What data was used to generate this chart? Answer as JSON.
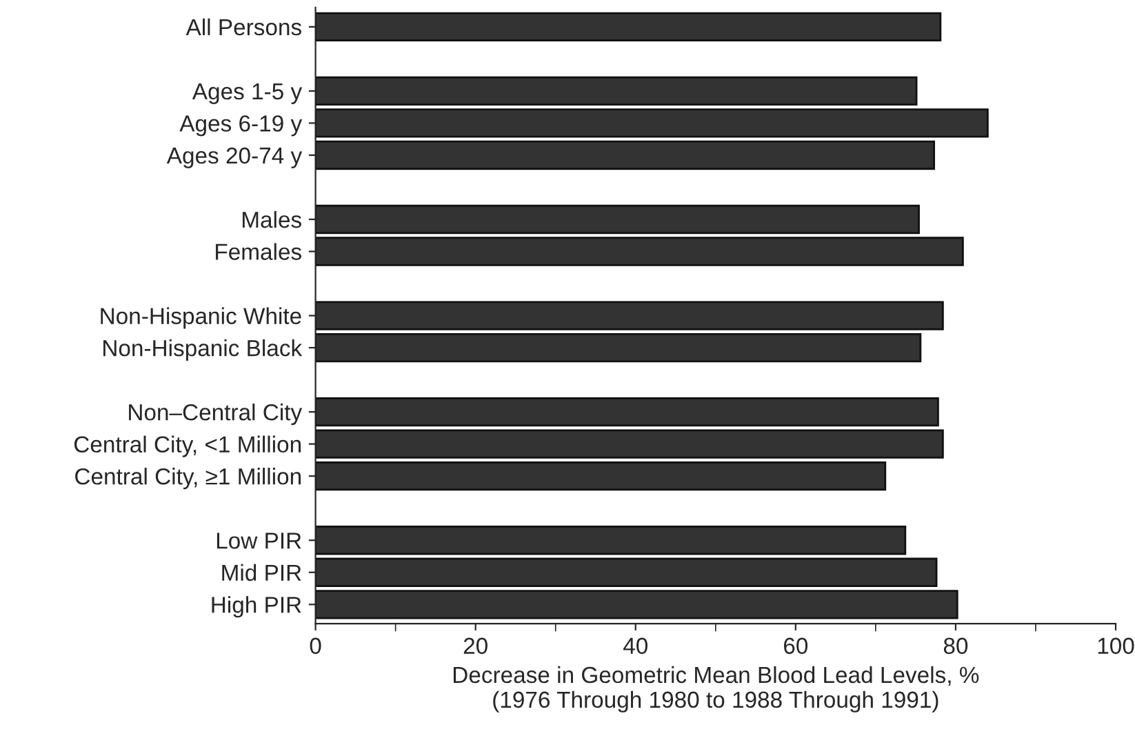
{
  "chart_data": {
    "type": "bar",
    "orientation": "horizontal",
    "xlabel": "Decrease in Geometric Mean Blood Lead Levels, %\n(1976 Through 1980 to 1988 Through 1991)",
    "categories": [
      "All Persons",
      null,
      "Ages 1-5 y",
      "Ages 6-19 y",
      "Ages 20-74 y",
      null,
      "Males",
      "Females",
      null,
      "Non-Hispanic White",
      "Non-Hispanic Black",
      null,
      "Non–Central City",
      "Central City, <1 Million",
      "Central City, ≥1 Million",
      null,
      "Low PIR",
      "Mid PIR",
      "High PIR"
    ],
    "values": [
      78.1,
      null,
      75.1,
      84.0,
      77.3,
      null,
      75.4,
      80.9,
      null,
      78.4,
      75.6,
      null,
      77.8,
      78.4,
      71.2,
      null,
      73.7,
      77.6,
      80.2
    ],
    "color": "#333333",
    "xlim": [
      0,
      100
    ],
    "xticks": [
      0,
      20,
      40,
      60,
      80,
      100
    ],
    "grid": false,
    "legend": false
  }
}
